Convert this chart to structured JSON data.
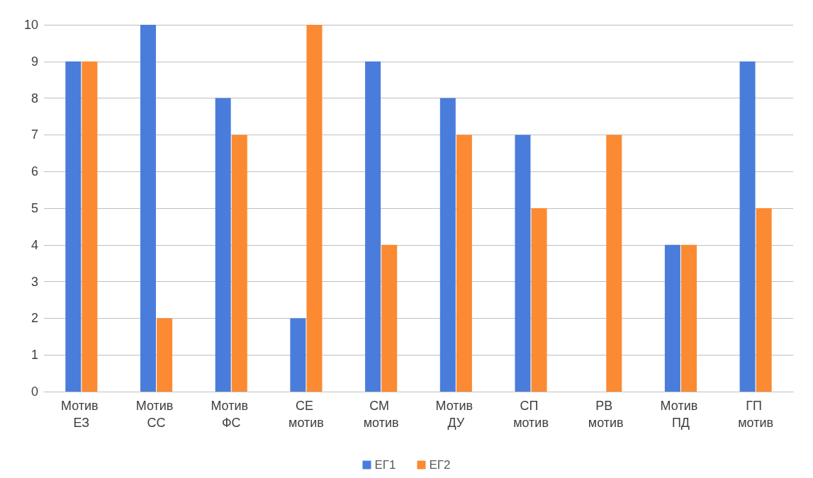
{
  "chart_data": {
    "type": "bar",
    "categories": [
      "Мотив ЕЗ",
      "Мотив СС",
      "Мотив ФС",
      "СЕ мотив",
      "СМ мотив",
      "Мотив ДУ",
      "СП мотив",
      "РВ мотив",
      "Мотив ПД",
      "ГП мотив"
    ],
    "series": [
      {
        "name": "ЕГ1",
        "color": "#4a7ddb",
        "values": [
          9,
          10,
          8,
          2,
          9,
          8,
          7,
          0,
          4,
          9
        ]
      },
      {
        "name": "ЕГ2",
        "color": "#fb8a32",
        "values": [
          9,
          2,
          7,
          10,
          4,
          7,
          5,
          7,
          4,
          5
        ]
      }
    ],
    "ylim": [
      0,
      10
    ],
    "yticks": [
      0,
      1,
      2,
      3,
      4,
      5,
      6,
      7,
      8,
      9,
      10
    ],
    "grid": "y",
    "legend": "bottom"
  }
}
